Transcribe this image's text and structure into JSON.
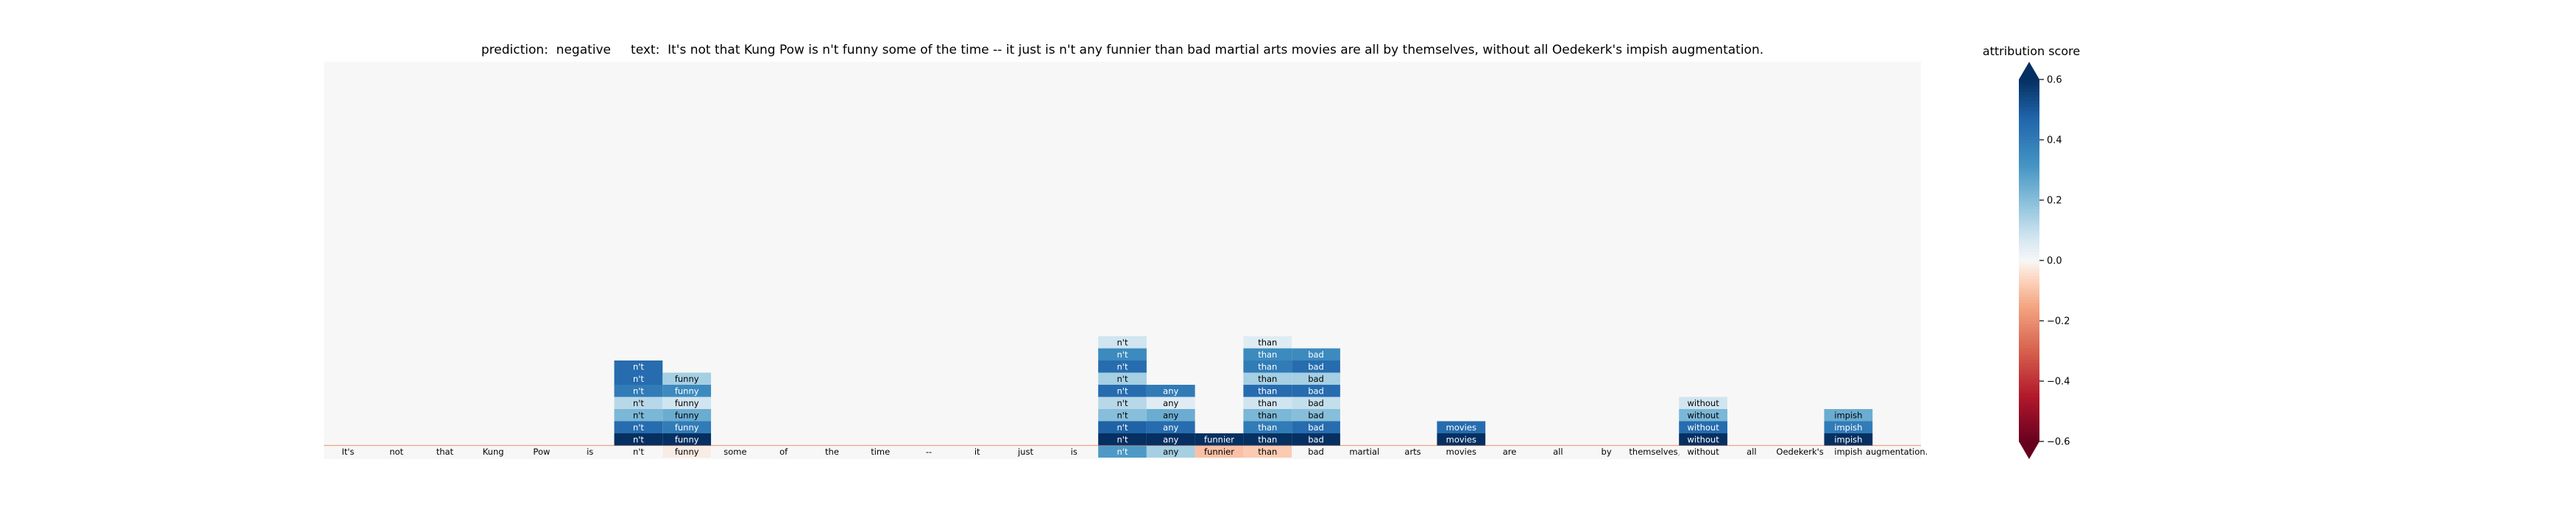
{
  "title": "prediction:  negative     text:  It's not that Kung Pow is n't funny some of the time -- it just is n't any funnier than bad martial arts movies are all by themselves, without all Oedekerk's impish augmentation.",
  "colorbar": {
    "label": "attribution score",
    "ticks": [
      0.6,
      0.4,
      0.2,
      0.0,
      -0.2,
      -0.4,
      -0.6
    ],
    "tick_labels": [
      "0.6",
      "0.4",
      "0.2",
      "0.0",
      "−0.2",
      "−0.4",
      "−0.6"
    ],
    "range": [
      -0.6,
      0.6
    ],
    "colormap": "RdBu"
  },
  "chart_data": {
    "type": "heatmap",
    "title": "prediction:  negative     text:  It's not that Kung Pow is n't funny some of the time -- it just is n't any funnier than bad martial arts movies are all by themselves, without all Oedekerk's impish augmentation.",
    "tokens": [
      "It's",
      "not",
      "that",
      "Kung",
      "Pow",
      "is",
      "n't",
      "funny",
      "some",
      "of",
      "the",
      "time",
      "--",
      "it",
      "just",
      "is",
      "n't",
      "any",
      "funnier",
      "than",
      "bad",
      "martial",
      "arts",
      "movies",
      "are",
      "all",
      "by",
      "themselves,",
      "without",
      "all",
      "Oedekerk's",
      "impish",
      "augmentation."
    ],
    "token_scores": [
      0.0,
      0.0,
      0.0,
      0.0,
      0.0,
      0.0,
      0.0,
      -0.02,
      0.0,
      0.0,
      0.0,
      0.0,
      0.0,
      0.0,
      0.0,
      0.0,
      0.3,
      0.15,
      -0.1,
      -0.08,
      0.0,
      0.0,
      0.0,
      0.0,
      0.0,
      0.0,
      0.0,
      0.0,
      0.0,
      0.0,
      0.0,
      0.0,
      0.0
    ],
    "blocks": [
      {
        "token_index": 6,
        "label": "n't",
        "scores": [
          0.6,
          0.45,
          0.22,
          0.12,
          0.4,
          0.45,
          0.45
        ]
      },
      {
        "token_index": 7,
        "label": "funny",
        "scores": [
          0.6,
          0.4,
          0.25,
          0.08,
          0.35,
          0.15
        ]
      },
      {
        "token_index": 16,
        "label": "n't",
        "scores": [
          0.6,
          0.48,
          0.2,
          0.12,
          0.45,
          0.15,
          0.45,
          0.35,
          0.08
        ]
      },
      {
        "token_index": 17,
        "label": "any",
        "scores": [
          0.6,
          0.45,
          0.25,
          0.05,
          0.4
        ]
      },
      {
        "token_index": 18,
        "label": "funnier",
        "scores": [
          0.6
        ]
      },
      {
        "token_index": 19,
        "label": "than",
        "scores": [
          0.6,
          0.4,
          0.22,
          0.08,
          0.45,
          0.15,
          0.4,
          0.35,
          0.05
        ]
      },
      {
        "token_index": 20,
        "label": "bad",
        "scores": [
          0.6,
          0.45,
          0.2,
          0.1,
          0.45,
          0.15,
          0.45,
          0.35
        ]
      },
      {
        "token_index": 23,
        "label": "movies",
        "scores": [
          0.6,
          0.45
        ]
      },
      {
        "token_index": 28,
        "label": "without",
        "scores": [
          0.6,
          0.45,
          0.22,
          0.08
        ]
      },
      {
        "token_index": 31,
        "label": "impish",
        "scores": [
          0.6,
          0.4,
          0.25
        ]
      }
    ],
    "grid": false,
    "legend": "colorbar right"
  }
}
